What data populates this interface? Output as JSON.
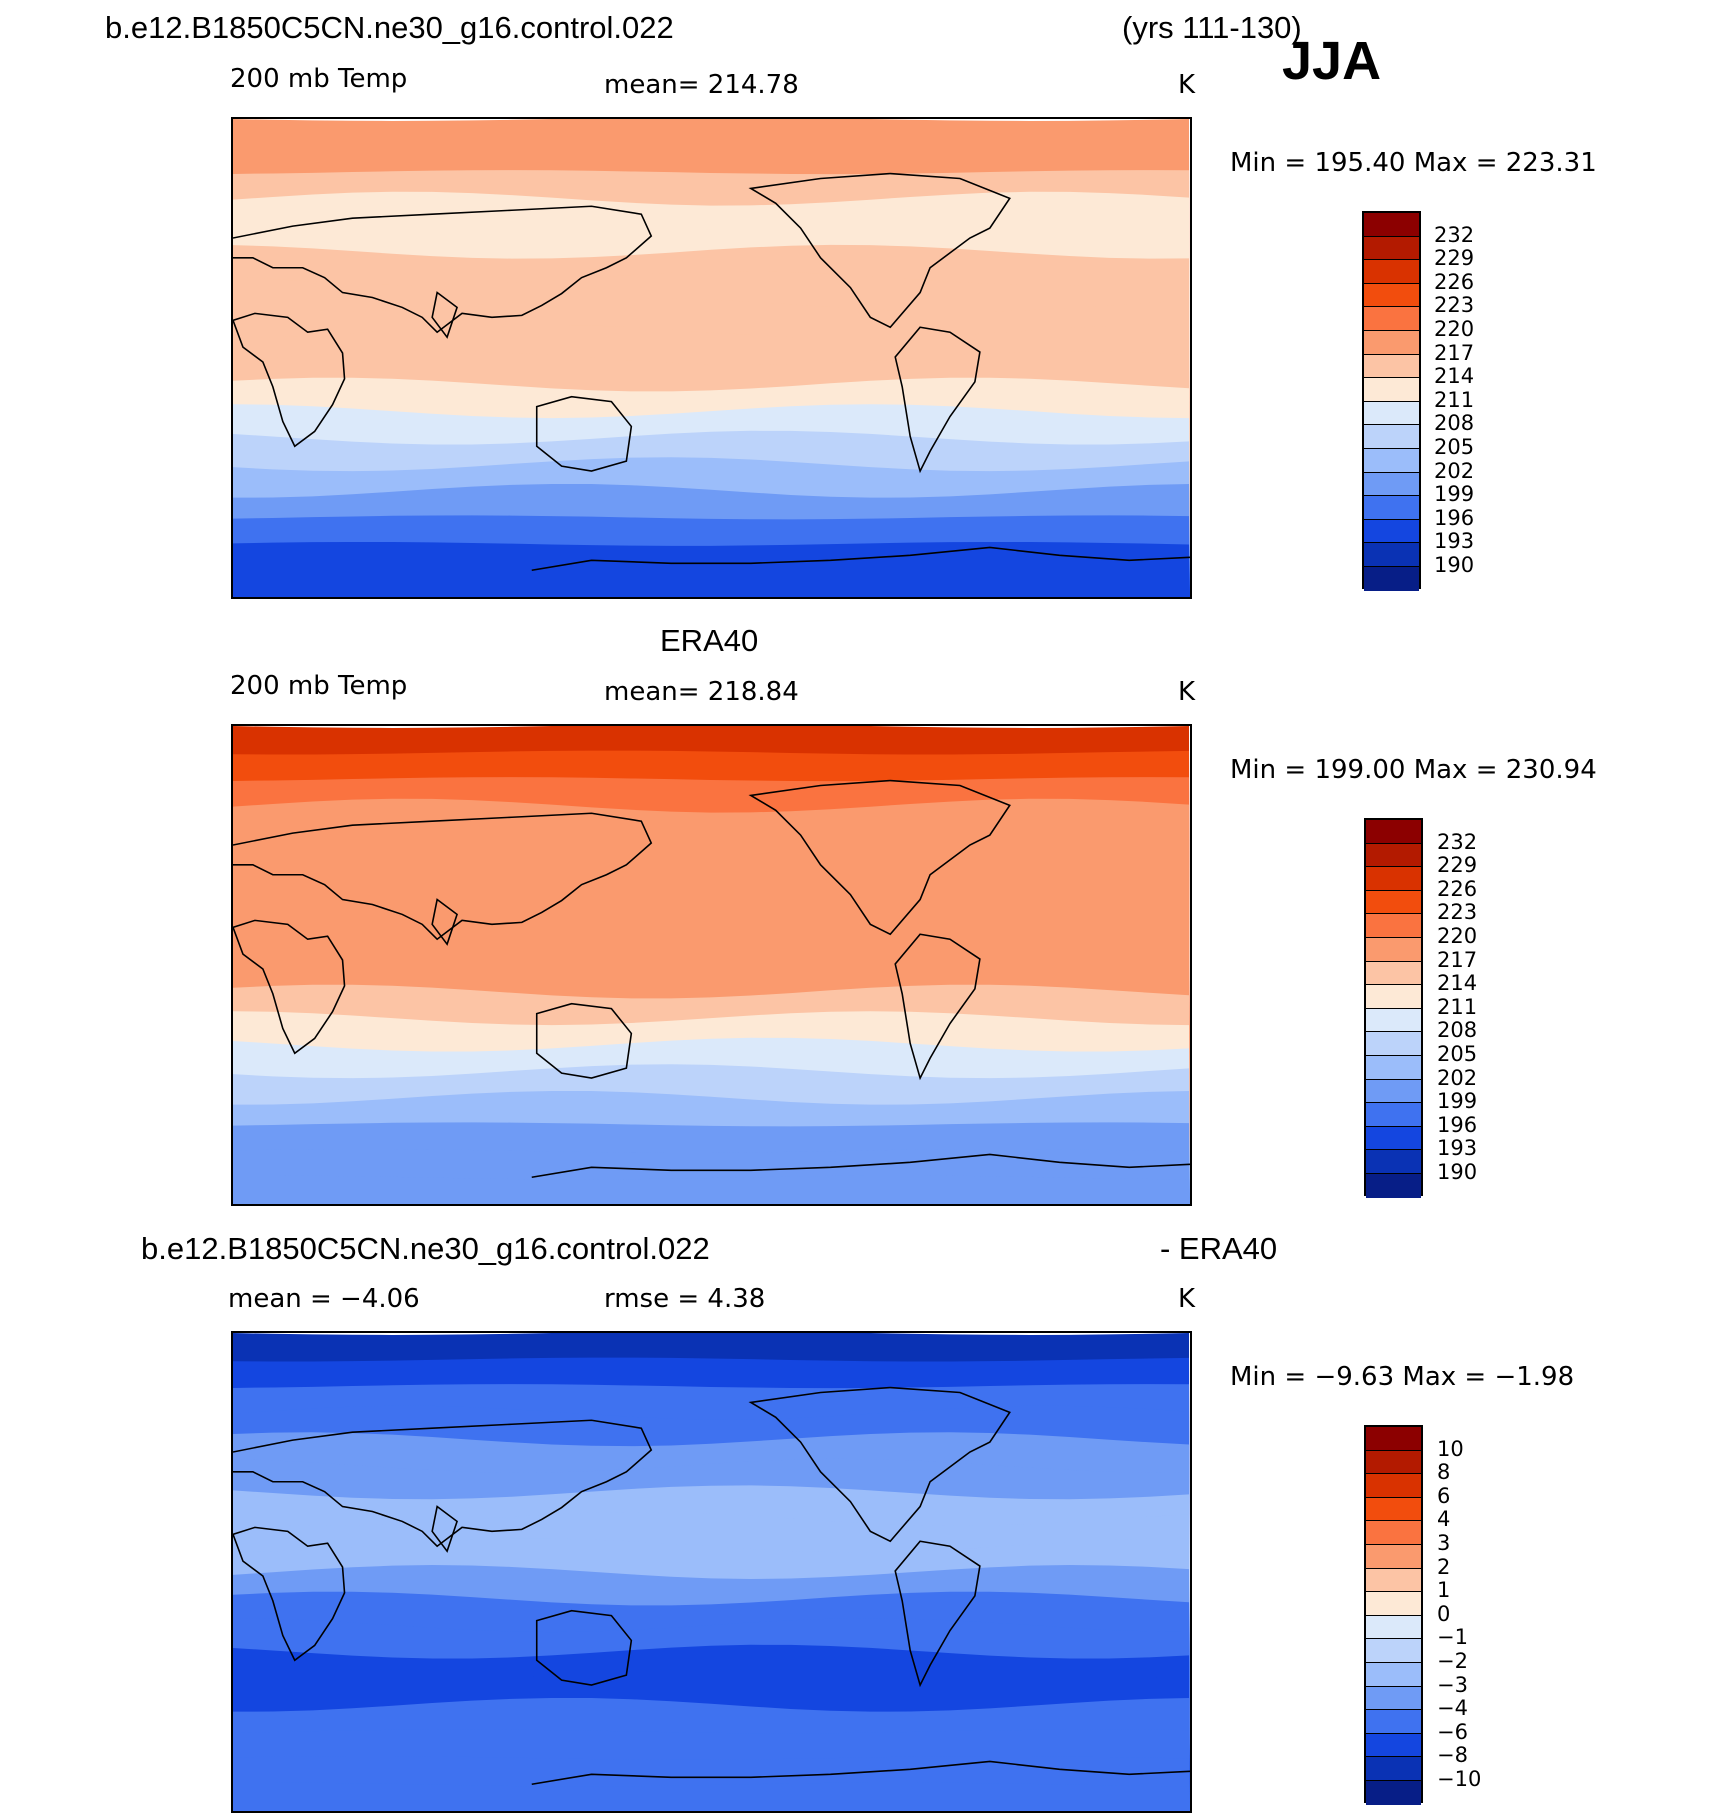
{
  "header": {
    "case_title": "b.e12.B1850C5CN.ne30_g16.control.022",
    "years": "(yrs 111-130)",
    "season": "JJA"
  },
  "palettes": {
    "temp": [
      "#8c0000",
      "#b31a00",
      "#d93200",
      "#f24d0d",
      "#fa7340",
      "#fa9a6e",
      "#fcc4a5",
      "#fde9d6",
      "#dbe9fa",
      "#bcd3fa",
      "#9bbdfa",
      "#6f9bf5",
      "#3f72f0",
      "#1446e0",
      "#0a32b4",
      "#071e87",
      "#00007a"
    ],
    "diff": [
      "#8c0000",
      "#b31a00",
      "#d93200",
      "#f24d0d",
      "#fa7340",
      "#fa9a6e",
      "#fcc4a5",
      "#fde9d6",
      "#dbe9fa",
      "#bcd3fa",
      "#9bbdfa",
      "#6f9bf5",
      "#3f72f0",
      "#1446e0",
      "#0a32b4",
      "#071e87",
      "#00007a"
    ]
  },
  "panels": [
    {
      "id": "model",
      "dataset_title": "",
      "field": "200 mb Temp",
      "stat": "mean=  214.78",
      "stat2": "",
      "units": "K",
      "minmax": "Min  =  195.40  Max  =  223.31",
      "colorbar": {
        "labels": [
          "232",
          "229",
          "226",
          "223",
          "220",
          "217",
          "214",
          "211",
          "208",
          "205",
          "202",
          "199",
          "196",
          "193",
          "190"
        ]
      },
      "bands_top_to_bottom": [
        220,
        220,
        217,
        214,
        214,
        217,
        217,
        217,
        217,
        217,
        214,
        211,
        208,
        205,
        202,
        199,
        196,
        196
      ]
    },
    {
      "id": "obs",
      "dataset_title": "ERA40",
      "field": "200 mb Temp",
      "stat": "mean=  218.84",
      "stat2": "",
      "units": "K",
      "minmax": "Min  =  199.00  Max  =  230.94",
      "colorbar": {
        "labels": [
          "232",
          "229",
          "226",
          "223",
          "220",
          "217",
          "214",
          "211",
          "208",
          "205",
          "202",
          "199",
          "196",
          "193",
          "190"
        ]
      },
      "bands_top_to_bottom": [
        229,
        226,
        223,
        220,
        220,
        220,
        220,
        220,
        220,
        220,
        217,
        214,
        211,
        208,
        205,
        202,
        202,
        202
      ]
    },
    {
      "id": "diff",
      "dataset_title": "b.e12.B1850C5CN.ne30_g16.control.022",
      "dataset_title_right": "- ERA40",
      "field": "mean  =   −4.06",
      "stat": "rmse  =     4.38",
      "stat2": "",
      "units": "K",
      "minmax": "Min  =   −9.63  Max  =   −1.98",
      "colorbar": {
        "labels": [
          "10",
          "8",
          "6",
          "4",
          "3",
          "2",
          "1",
          "0",
          "−1",
          "−2",
          "−3",
          "−4",
          "−6",
          "−8",
          "−10"
        ]
      },
      "bands_top_to_bottom": [
        -8,
        -6,
        -4,
        -4,
        -3,
        -3,
        -2,
        -2,
        -2,
        -3,
        -4,
        -4,
        -6,
        -6,
        -4,
        -4,
        -4,
        -4
      ]
    }
  ]
}
